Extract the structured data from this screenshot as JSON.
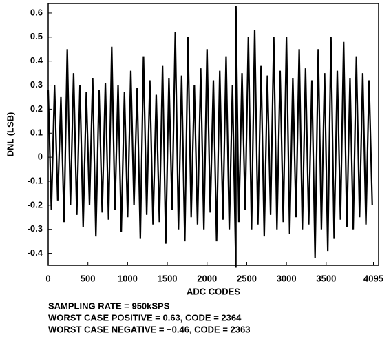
{
  "chart_data": {
    "type": "line",
    "x_label": "ADC CODES",
    "y_label": "DNL (LSB)",
    "xlim": [
      0,
      4160
    ],
    "ylim": [
      -0.45,
      0.64
    ],
    "xticks": [
      0,
      500,
      1000,
      1500,
      2000,
      2500,
      3000,
      3500,
      4095
    ],
    "yticks": [
      0.6,
      0.5,
      0.4,
      0.3,
      0.2,
      0.1,
      0,
      -0.1,
      -0.2,
      -0.3,
      -0.4
    ],
    "grid": false,
    "annotations": [
      "SAMPLING RATE = 950kSPS",
      "WORST CASE POSITIVE = 0.63, CODE = 2364",
      "WORST CASE NEGATIVE = −0.46, CODE = 2363"
    ],
    "series": [
      {
        "name": "DNL",
        "color": "#000000",
        "x": [
          0,
          40,
          80,
          120,
          160,
          200,
          240,
          280,
          320,
          360,
          400,
          440,
          480,
          520,
          560,
          600,
          640,
          680,
          720,
          760,
          800,
          840,
          880,
          920,
          960,
          1000,
          1040,
          1080,
          1120,
          1160,
          1200,
          1240,
          1280,
          1320,
          1360,
          1400,
          1440,
          1480,
          1520,
          1560,
          1600,
          1640,
          1680,
          1720,
          1760,
          1800,
          1840,
          1880,
          1920,
          1960,
          2000,
          2040,
          2080,
          2120,
          2160,
          2200,
          2240,
          2280,
          2320,
          2363,
          2364,
          2400,
          2440,
          2480,
          2520,
          2560,
          2600,
          2640,
          2680,
          2720,
          2760,
          2800,
          2840,
          2880,
          2920,
          2960,
          3000,
          3040,
          3080,
          3120,
          3160,
          3200,
          3240,
          3280,
          3320,
          3360,
          3400,
          3440,
          3480,
          3520,
          3560,
          3600,
          3640,
          3680,
          3720,
          3760,
          3800,
          3840,
          3880,
          3920,
          3960,
          4000,
          4040,
          4080
        ],
        "values": [
          0.28,
          -0.22,
          0.3,
          -0.18,
          0.25,
          -0.27,
          0.45,
          -0.2,
          0.35,
          -0.24,
          0.3,
          -0.29,
          0.27,
          -0.2,
          0.33,
          -0.33,
          0.28,
          -0.23,
          0.31,
          -0.26,
          0.46,
          -0.22,
          0.3,
          -0.31,
          0.27,
          -0.25,
          0.36,
          -0.2,
          0.29,
          -0.34,
          0.42,
          -0.24,
          0.32,
          -0.28,
          0.26,
          -0.27,
          0.38,
          -0.36,
          0.33,
          -0.22,
          0.52,
          -0.3,
          0.34,
          -0.35,
          0.5,
          -0.25,
          0.3,
          -0.28,
          0.37,
          -0.3,
          0.45,
          -0.23,
          0.32,
          -0.35,
          0.36,
          -0.26,
          0.42,
          -0.3,
          0.3,
          -0.46,
          0.63,
          -0.27,
          0.35,
          -0.22,
          0.5,
          -0.3,
          0.53,
          -0.28,
          0.38,
          -0.33,
          0.34,
          -0.24,
          0.5,
          -0.3,
          0.36,
          -0.27,
          0.5,
          -0.32,
          0.33,
          -0.25,
          0.45,
          -0.3,
          0.37,
          -0.28,
          0.32,
          -0.42,
          0.45,
          -0.3,
          0.35,
          -0.39,
          0.5,
          -0.34,
          0.36,
          -0.26,
          0.48,
          -0.29,
          0.33,
          -0.3,
          0.42,
          -0.25,
          0.35,
          -0.28,
          0.32,
          -0.2
        ]
      }
    ]
  }
}
